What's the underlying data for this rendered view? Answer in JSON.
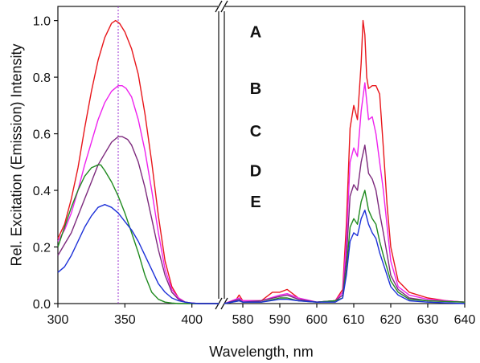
{
  "chart_data": {
    "type": "line",
    "xlabel": "Wavelength, nm",
    "ylabel": "Rel. Excitation (Emission) Intensity",
    "ylim": [
      0,
      1.05
    ],
    "yticks": [
      "0.0",
      "0.2",
      "0.4",
      "0.6",
      "0.8",
      "1.0"
    ],
    "y_tick_values": [
      0,
      0.2,
      0.4,
      0.6,
      0.8,
      1.0
    ],
    "axis_break": "between 420 nm and 575 nm",
    "panels": [
      {
        "name": "excitation",
        "xlim": [
          300,
          420
        ],
        "xticks": [
          "300",
          "350",
          "400"
        ],
        "x_tick_values": [
          300,
          350,
          400
        ]
      },
      {
        "name": "emission",
        "xlim": [
          575,
          640
        ],
        "xticks": [
          "580",
          "590",
          "600",
          "610",
          "620",
          "630",
          "640"
        ],
        "x_tick_values": [
          580,
          590,
          600,
          610,
          620,
          630,
          640
        ]
      }
    ],
    "reference_line_x": 345,
    "curve_labels": [
      "A",
      "B",
      "C",
      "D",
      "E"
    ],
    "series": [
      {
        "color": "#e8161b",
        "excitation": {
          "x": [
            300,
            305,
            310,
            315,
            320,
            325,
            330,
            335,
            340,
            343,
            346,
            350,
            355,
            360,
            365,
            370,
            375,
            380,
            385,
            390,
            395,
            400,
            405,
            410,
            420
          ],
          "y": [
            0.23,
            0.28,
            0.37,
            0.48,
            0.62,
            0.75,
            0.86,
            0.94,
            0.99,
            1.0,
            0.99,
            0.96,
            0.9,
            0.81,
            0.67,
            0.5,
            0.31,
            0.15,
            0.06,
            0.02,
            0.005,
            0.002,
            0.0,
            0.0,
            0.0
          ]
        },
        "emission": {
          "x": [
            575,
            578,
            579,
            580,
            585,
            588,
            590,
            592,
            595,
            598,
            600,
            605,
            607,
            608,
            609,
            610,
            611,
            612,
            612.5,
            613,
            613.5,
            614,
            615,
            616,
            617,
            618,
            619,
            620,
            622,
            625,
            630,
            635,
            640
          ],
          "y": [
            0.0,
            0.01,
            0.03,
            0.01,
            0.01,
            0.04,
            0.04,
            0.05,
            0.02,
            0.01,
            0.005,
            0.01,
            0.05,
            0.28,
            0.62,
            0.7,
            0.65,
            0.85,
            1.0,
            0.95,
            0.8,
            0.76,
            0.77,
            0.77,
            0.74,
            0.55,
            0.35,
            0.2,
            0.08,
            0.04,
            0.02,
            0.01,
            0.005
          ]
        }
      },
      {
        "color": "#ee22ee",
        "excitation": {
          "x": [
            300,
            305,
            310,
            315,
            320,
            325,
            330,
            335,
            340,
            345,
            348,
            351,
            355,
            360,
            365,
            370,
            375,
            380,
            385,
            390,
            395,
            400,
            405,
            410,
            420
          ],
          "y": [
            0.22,
            0.26,
            0.32,
            0.4,
            0.49,
            0.57,
            0.65,
            0.71,
            0.75,
            0.77,
            0.77,
            0.76,
            0.73,
            0.65,
            0.54,
            0.4,
            0.25,
            0.12,
            0.05,
            0.02,
            0.005,
            0.002,
            0.0,
            0.0,
            0.0
          ]
        },
        "emission": {
          "x": [
            575,
            579,
            580,
            585,
            590,
            592,
            595,
            600,
            605,
            607,
            608,
            609,
            610,
            611,
            612,
            613,
            614,
            615,
            616,
            617,
            618,
            620,
            622,
            625,
            630,
            640
          ],
          "y": [
            0.0,
            0.02,
            0.01,
            0.01,
            0.03,
            0.035,
            0.02,
            0.005,
            0.01,
            0.04,
            0.22,
            0.5,
            0.55,
            0.52,
            0.68,
            0.78,
            0.65,
            0.66,
            0.6,
            0.5,
            0.4,
            0.15,
            0.06,
            0.03,
            0.015,
            0.005
          ]
        }
      },
      {
        "color": "#7d2a7d",
        "excitation": {
          "x": [
            300,
            305,
            310,
            315,
            320,
            325,
            330,
            335,
            340,
            345,
            348,
            352,
            355,
            360,
            365,
            370,
            375,
            380,
            385,
            390,
            395,
            400,
            405,
            410,
            420
          ],
          "y": [
            0.17,
            0.21,
            0.25,
            0.31,
            0.37,
            0.43,
            0.49,
            0.53,
            0.57,
            0.59,
            0.59,
            0.58,
            0.56,
            0.5,
            0.41,
            0.3,
            0.19,
            0.1,
            0.04,
            0.015,
            0.005,
            0.0,
            0.0,
            0.0,
            0.0
          ]
        },
        "emission": {
          "x": [
            575,
            579,
            580,
            585,
            590,
            592,
            595,
            600,
            605,
            607,
            608,
            609,
            610,
            611,
            612,
            613,
            614,
            615,
            616,
            617,
            618,
            620,
            622,
            625,
            630,
            640
          ],
          "y": [
            0.0,
            0.015,
            0.005,
            0.01,
            0.025,
            0.03,
            0.015,
            0.005,
            0.01,
            0.03,
            0.16,
            0.38,
            0.42,
            0.4,
            0.5,
            0.56,
            0.46,
            0.44,
            0.4,
            0.32,
            0.25,
            0.1,
            0.05,
            0.02,
            0.01,
            0.005
          ]
        }
      },
      {
        "color": "#1f8a1f",
        "excitation": {
          "x": [
            300,
            305,
            310,
            315,
            320,
            325,
            330,
            332,
            335,
            340,
            345,
            350,
            355,
            360,
            365,
            370,
            375,
            380,
            385,
            390,
            395,
            400,
            410,
            420
          ],
          "y": [
            0.2,
            0.27,
            0.34,
            0.4,
            0.45,
            0.48,
            0.49,
            0.49,
            0.47,
            0.43,
            0.38,
            0.32,
            0.25,
            0.18,
            0.1,
            0.04,
            0.015,
            0.005,
            0.002,
            0.0,
            0.0,
            0.0,
            0.0,
            0.0
          ]
        },
        "emission": {
          "x": [
            575,
            579,
            580,
            585,
            590,
            592,
            595,
            600,
            605,
            607,
            608,
            609,
            610,
            611,
            612,
            613,
            614,
            615,
            616,
            617,
            618,
            620,
            622,
            625,
            630,
            640
          ],
          "y": [
            0.0,
            0.01,
            0.005,
            0.005,
            0.02,
            0.02,
            0.01,
            0.005,
            0.01,
            0.02,
            0.12,
            0.27,
            0.3,
            0.28,
            0.36,
            0.4,
            0.33,
            0.3,
            0.28,
            0.22,
            0.17,
            0.08,
            0.04,
            0.015,
            0.01,
            0.005
          ]
        }
      },
      {
        "color": "#1c30d8",
        "excitation": {
          "x": [
            300,
            305,
            310,
            315,
            320,
            325,
            330,
            335,
            340,
            345,
            350,
            355,
            360,
            365,
            370,
            375,
            380,
            385,
            390,
            395,
            400,
            405,
            410,
            420
          ],
          "y": [
            0.11,
            0.13,
            0.17,
            0.22,
            0.27,
            0.31,
            0.34,
            0.35,
            0.34,
            0.32,
            0.29,
            0.26,
            0.22,
            0.17,
            0.12,
            0.07,
            0.04,
            0.02,
            0.01,
            0.005,
            0.002,
            0.0,
            0.0,
            0.0
          ]
        },
        "emission": {
          "x": [
            575,
            579,
            580,
            585,
            590,
            592,
            595,
            600,
            605,
            607,
            608,
            609,
            610,
            611,
            612,
            613,
            614,
            615,
            616,
            617,
            618,
            620,
            622,
            625,
            630,
            640
          ],
          "y": [
            0.0,
            0.01,
            0.005,
            0.005,
            0.015,
            0.015,
            0.01,
            0.005,
            0.005,
            0.02,
            0.1,
            0.22,
            0.25,
            0.24,
            0.3,
            0.33,
            0.28,
            0.25,
            0.23,
            0.18,
            0.14,
            0.06,
            0.03,
            0.01,
            0.005,
            0.0
          ]
        }
      }
    ]
  }
}
